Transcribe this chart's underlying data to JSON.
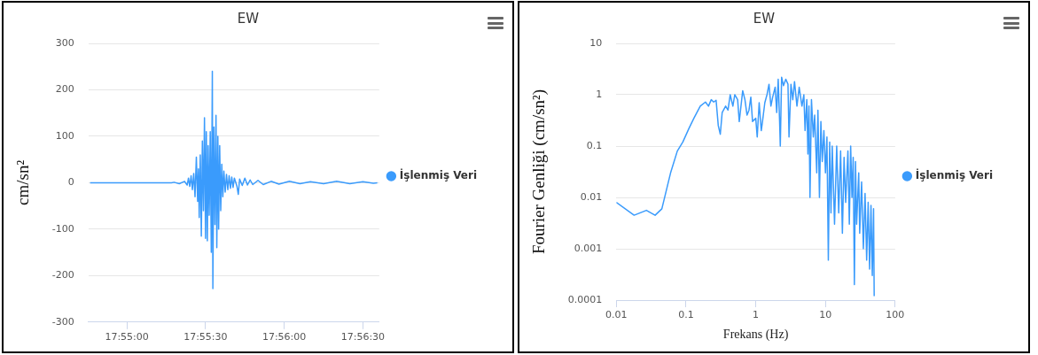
{
  "chart_data": [
    {
      "type": "line",
      "title": "EW",
      "ylabel": "cm/sn²",
      "x": [
        17.912778,
        17.921389,
        17.921667,
        17.922222,
        17.922778,
        17.923056,
        17.923194,
        17.923333,
        17.923472,
        17.923611,
        17.92375,
        17.923889,
        17.924028,
        17.924167,
        17.92425,
        17.924333,
        17.924444,
        17.924556,
        17.924667,
        17.924778,
        17.924889,
        17.925,
        17.925083,
        17.925194,
        17.925278,
        17.925389,
        17.9255,
        17.925611,
        17.925722,
        17.925778,
        17.925889,
        17.926,
        17.926111,
        17.926194,
        17.926306,
        17.926389,
        17.9265,
        17.926611,
        17.926722,
        17.926833,
        17.926944,
        17.927083,
        17.927222,
        17.927361,
        17.9275,
        17.927639,
        17.927778,
        17.927917,
        17.928056,
        17.928333,
        17.928472,
        17.928611,
        17.928889,
        17.929167,
        17.929444,
        17.929722,
        17.93,
        17.930556,
        17.931111,
        17.931944,
        17.932778,
        17.933889,
        17.935,
        17.936111,
        17.9375,
        17.938889,
        17.940278,
        17.941667,
        17.942778,
        17.943194
      ],
      "series": [
        {
          "name": "İşlenmiş Veri",
          "color": "#3a9bfc",
          "values": [
            0,
            0,
            1,
            -2,
            3,
            -5,
            10,
            -8,
            15,
            -15,
            20,
            -30,
            55,
            -40,
            30,
            -75,
            60,
            -115,
            90,
            -60,
            140,
            -120,
            110,
            -125,
            80,
            -70,
            110,
            -150,
            240,
            -228,
            120,
            -90,
            145,
            -140,
            100,
            -100,
            80,
            -60,
            40,
            -30,
            25,
            -20,
            18,
            -15,
            15,
            -12,
            12,
            -10,
            10,
            -8,
            -25,
            8,
            -6,
            10,
            -5,
            6,
            -4,
            5,
            -4,
            3,
            -3,
            3,
            -2,
            2,
            -2,
            3,
            -2,
            2,
            -1,
            0
          ]
        }
      ],
      "xlim": [
        17.9126,
        17.9434
      ],
      "xticks": [
        {
          "value": 17.916667,
          "label": "17:55:00"
        },
        {
          "value": 17.925,
          "label": "17:55:30"
        },
        {
          "value": 17.933333,
          "label": "17:56:00"
        },
        {
          "value": 17.941667,
          "label": "17:56:30"
        }
      ],
      "ylim": [
        -300,
        300
      ],
      "yticks": [
        -300,
        -200,
        -100,
        0,
        100,
        200,
        300
      ],
      "grid": "y",
      "legend": "right",
      "marker": "none",
      "line_style": "solid"
    },
    {
      "type": "line",
      "title": "EW",
      "xlabel": "Frekans (Hz)",
      "ylabel": "Fourier Genliği (cm/sn²)",
      "log": "xy",
      "x": [
        0.01,
        0.018,
        0.027,
        0.036,
        0.045,
        0.06,
        0.075,
        0.09,
        0.11,
        0.13,
        0.16,
        0.19,
        0.21,
        0.23,
        0.25,
        0.27,
        0.29,
        0.31,
        0.33,
        0.37,
        0.4,
        0.43,
        0.47,
        0.5,
        0.55,
        0.58,
        0.65,
        0.7,
        0.75,
        0.8,
        0.85,
        0.9,
        1.0,
        1.05,
        1.12,
        1.2,
        1.25,
        1.35,
        1.45,
        1.55,
        1.65,
        1.75,
        1.9,
        2.0,
        2.1,
        2.2,
        2.25,
        2.35,
        2.5,
        2.7,
        2.9,
        3.0,
        3.2,
        3.4,
        3.6,
        3.9,
        4.2,
        4.6,
        4.9,
        5.1,
        5.4,
        5.6,
        5.8,
        6.0,
        6.3,
        6.7,
        7.0,
        7.5,
        7.8,
        8.2,
        8.6,
        9.0,
        9.5,
        10,
        10.5,
        11,
        11.5,
        12,
        12.5,
        13.5,
        14.5,
        15.5,
        16.5,
        17.5,
        18.5,
        19.5,
        21,
        22,
        23,
        24,
        25,
        26,
        27,
        28,
        30,
        31,
        33,
        35,
        37,
        39,
        41,
        43,
        45,
        47,
        49,
        50
      ],
      "series": [
        {
          "name": "İşlenmiş Veri",
          "color": "#3a9bfc",
          "values": [
            0.008,
            0.0045,
            0.0056,
            0.0045,
            0.006,
            0.03,
            0.08,
            0.12,
            0.22,
            0.35,
            0.6,
            0.72,
            0.6,
            0.8,
            0.72,
            0.78,
            0.25,
            0.17,
            0.45,
            0.6,
            0.5,
            1.0,
            0.6,
            1.0,
            0.8,
            0.3,
            1.2,
            0.8,
            0.4,
            0.5,
            0.9,
            0.3,
            0.35,
            0.15,
            0.7,
            0.2,
            0.3,
            0.7,
            1.0,
            1.6,
            0.6,
            0.9,
            1.4,
            0.45,
            2.0,
            0.3,
            0.1,
            2.2,
            1.5,
            2.0,
            1.6,
            0.15,
            1.6,
            0.8,
            1.8,
            0.6,
            1.4,
            0.6,
            1.0,
            0.2,
            0.8,
            0.07,
            0.6,
            0.01,
            0.8,
            0.15,
            0.4,
            0.03,
            0.5,
            0.01,
            0.3,
            0.05,
            0.2,
            0.03,
            0.15,
            0.0006,
            0.12,
            0.005,
            0.1,
            0.003,
            0.1,
            0.005,
            0.08,
            0.002,
            0.06,
            0.008,
            0.08,
            0.003,
            0.1,
            0.01,
            0.06,
            0.0002,
            0.05,
            0.003,
            0.03,
            0.002,
            0.02,
            0.001,
            0.012,
            0.0006,
            0.008,
            0.0004,
            0.007,
            0.0003,
            0.006,
            0.00012
          ]
        }
      ],
      "xlim": [
        0.01,
        100
      ],
      "xticks": [
        0.01,
        0.1,
        1,
        10,
        100
      ],
      "ylim": [
        0.0001,
        10
      ],
      "yticks": [
        0.0001,
        0.001,
        0.01,
        0.1,
        1,
        10
      ],
      "grid": "y",
      "legend": "right",
      "marker": "none",
      "line_style": "solid"
    }
  ]
}
